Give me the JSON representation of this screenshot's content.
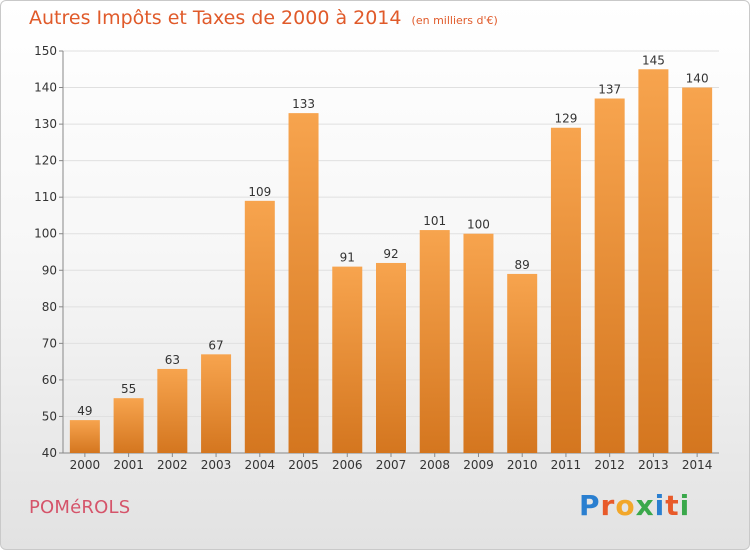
{
  "title": {
    "main": "Autres Impôts et Taxes de 2000 à 2014",
    "sub": "(en milliers d'€)"
  },
  "commune": "POMéROLS",
  "logo": {
    "letters": [
      {
        "ch": "P",
        "color": "#2a7fd0"
      },
      {
        "ch": "r",
        "color": "#e85a2a"
      },
      {
        "ch": "o",
        "color": "#f2a72a"
      },
      {
        "ch": "x",
        "color": "#3aa84b"
      },
      {
        "ch": "i",
        "color": "#2a7fd0"
      },
      {
        "ch": "t",
        "color": "#e85a2a"
      },
      {
        "ch": "i",
        "color": "#3aa84b"
      }
    ]
  },
  "colors": {
    "bar_light": "#f7a44e",
    "bar_dark": "#d4761f",
    "title": "#e05a2a",
    "commune": "#d5546a"
  },
  "chart_data": {
    "type": "bar",
    "categories": [
      "2000",
      "2001",
      "2002",
      "2003",
      "2004",
      "2005",
      "2006",
      "2007",
      "2008",
      "2009",
      "2010",
      "2011",
      "2012",
      "2013",
      "2014"
    ],
    "values": [
      49,
      55,
      63,
      67,
      109,
      133,
      91,
      92,
      101,
      100,
      89,
      129,
      137,
      145,
      140
    ],
    "ylim": [
      40,
      150
    ],
    "yticks": [
      40,
      50,
      60,
      70,
      80,
      90,
      100,
      110,
      120,
      130,
      140,
      150
    ],
    "grid": true
  }
}
